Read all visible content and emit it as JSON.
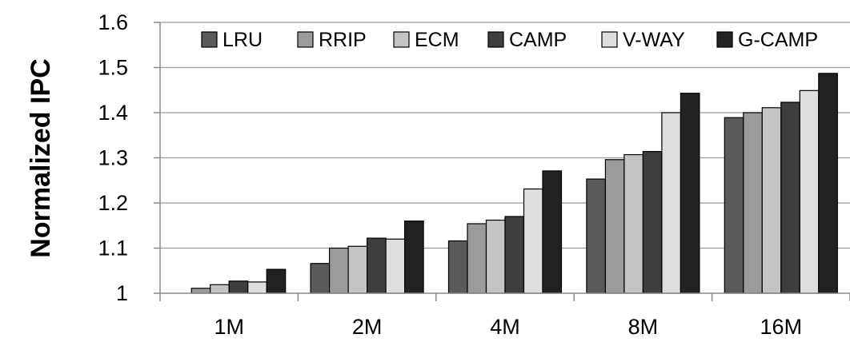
{
  "chart_data": {
    "type": "bar",
    "title": "",
    "xlabel": "",
    "ylabel": "Normalized IPC",
    "ylim": [
      1,
      1.6
    ],
    "yticks": [
      "1",
      "1.1",
      "1.2",
      "1.3",
      "1.4",
      "1.5",
      "1.6"
    ],
    "grid": "horizontal",
    "legend_position": "top",
    "categories": [
      "1M",
      "2M",
      "4M",
      "8M",
      "16M"
    ],
    "series": [
      {
        "name": "LRU",
        "color": "#5a5a5a",
        "values": [
          1.0,
          1.066,
          1.116,
          1.253,
          1.389
        ]
      },
      {
        "name": "RRIP",
        "color": "#9b9b9b",
        "values": [
          1.011,
          1.1,
          1.154,
          1.296,
          1.4
        ]
      },
      {
        "name": "ECM",
        "color": "#c4c4c4",
        "values": [
          1.019,
          1.104,
          1.162,
          1.307,
          1.411
        ]
      },
      {
        "name": "CAMP",
        "color": "#3e3e3e",
        "values": [
          1.027,
          1.122,
          1.17,
          1.314,
          1.423
        ]
      },
      {
        "name": "V-WAY",
        "color": "#dedede",
        "values": [
          1.025,
          1.12,
          1.231,
          1.4,
          1.449
        ]
      },
      {
        "name": "G-CAMP",
        "color": "#222222",
        "values": [
          1.053,
          1.16,
          1.271,
          1.443,
          1.487
        ]
      }
    ]
  }
}
